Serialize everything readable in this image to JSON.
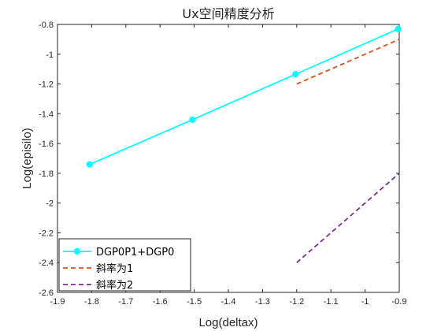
{
  "chart_data": {
    "type": "line",
    "title": "Ux空间精度分析",
    "xlabel": "Log(deltax)",
    "ylabel": "Log(episilo)",
    "xlim": [
      -1.9,
      -0.9
    ],
    "ylim": [
      -2.6,
      -0.8
    ],
    "xticks": [
      "-1.9",
      "-1.8",
      "-1.7",
      "-1.6",
      "-1.5",
      "-1.4",
      "-1.3",
      "-1.2",
      "-1.1",
      "-1",
      "-0.9"
    ],
    "yticks": [
      "-2.6",
      "-2.4",
      "-2.2",
      "-2",
      "-1.8",
      "-1.6",
      "-1.4",
      "-1.2",
      "-1",
      "-0.8"
    ],
    "grid": false,
    "legend_position": "bottom-left",
    "series": [
      {
        "name": "DGP0P1+DGP0",
        "color": "#00ffff",
        "line_style": "solid",
        "marker": "circle",
        "x": [
          -1.806,
          -1.505,
          -1.204,
          -0.903
        ],
        "y": [
          -1.74,
          -1.44,
          -1.135,
          -0.83
        ]
      },
      {
        "name": "斜率为1",
        "color": "#d95319",
        "line_style": "dashed",
        "marker": "none",
        "x": [
          -1.2,
          -0.9
        ],
        "y": [
          -1.2,
          -0.9
        ]
      },
      {
        "name": "斜率为2",
        "color": "#7e2f8e",
        "line_style": "dashed",
        "marker": "none",
        "x": [
          -1.2,
          -0.9
        ],
        "y": [
          -2.4,
          -1.8
        ]
      }
    ]
  }
}
